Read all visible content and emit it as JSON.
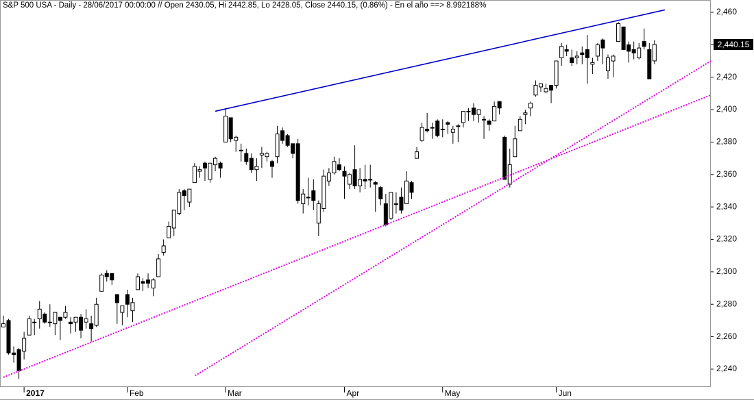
{
  "chart_data": {
    "type": "candlestick",
    "title": "S&P 500 USA - Daily - 28/06/2017 00:00:00 // Open 2430.05, Hi 2442.85, Lo 2428.05, Close 2440.15, (0.86%) - En el año ==> 8.992188%",
    "categories": [
      null,
      null,
      null,
      null,
      "2017",
      null,
      null,
      null,
      null,
      null,
      null,
      null,
      null,
      null,
      null,
      null,
      null,
      null,
      null,
      null,
      null,
      null,
      null,
      null,
      "Feb",
      null,
      null,
      null,
      null,
      null,
      null,
      null,
      null,
      null,
      null,
      null,
      null,
      null,
      null,
      null,
      null,
      null,
      null,
      "Mar",
      null,
      null,
      null,
      null,
      null,
      null,
      null,
      null,
      null,
      null,
      null,
      null,
      null,
      null,
      null,
      null,
      null,
      null,
      null,
      null,
      null,
      null,
      "Apr",
      null,
      null,
      null,
      null,
      null,
      null,
      null,
      null,
      null,
      null,
      null,
      null,
      null,
      null,
      null,
      null,
      null,
      null,
      "May",
      null,
      null,
      null,
      null,
      null,
      null,
      null,
      null,
      null,
      null,
      null,
      null,
      null,
      null,
      null,
      null,
      null,
      null,
      null,
      null,
      null,
      "Jun",
      null,
      null,
      null,
      null,
      null,
      null,
      null,
      null,
      null,
      null,
      null,
      null,
      null,
      null,
      null,
      null,
      null,
      null,
      null
    ],
    "candles": [
      {
        "open": 2266,
        "high": 2273,
        "low": 2266,
        "close": 2268
      },
      {
        "open": 2270,
        "high": 2271,
        "low": 2249,
        "close": 2250
      },
      {
        "open": 2250,
        "high": 2254,
        "low": 2244,
        "close": 2249
      },
      {
        "open": 2252,
        "high": 2253,
        "low": 2234,
        "close": 2239
      },
      {
        "open": 2251,
        "high": 2263,
        "low": 2246,
        "close": 2259
      },
      {
        "open": 2261,
        "high": 2273,
        "low": 2261,
        "close": 2271
      },
      {
        "open": 2269,
        "high": 2271,
        "low": 2261,
        "close": 2269
      },
      {
        "open": 2271,
        "high": 2282,
        "low": 2265,
        "close": 2277
      },
      {
        "open": 2274,
        "high": 2275,
        "low": 2268,
        "close": 2269
      },
      {
        "open": 2269,
        "high": 2280,
        "low": 2266,
        "close": 2269
      },
      {
        "open": 2268,
        "high": 2275,
        "low": 2261,
        "close": 2275
      },
      {
        "open": 2272,
        "high": 2272,
        "low": 2258,
        "close": 2270
      },
      {
        "open": 2272,
        "high": 2279,
        "low": 2271,
        "close": 2275
      },
      {
        "open": 2269,
        "high": 2272,
        "low": 2262,
        "close": 2268
      },
      {
        "open": 2269,
        "high": 2272,
        "low": 2263,
        "close": 2272
      },
      {
        "open": 2272,
        "high": 2274,
        "low": 2259,
        "close": 2264
      },
      {
        "open": 2269,
        "high": 2277,
        "low": 2265,
        "close": 2271
      },
      {
        "open": 2268,
        "high": 2273,
        "low": 2257,
        "close": 2265
      },
      {
        "open": 2267,
        "high": 2284,
        "low": 2266,
        "close": 2280
      },
      {
        "open": 2288,
        "high": 2299,
        "low": 2288,
        "close": 2298
      },
      {
        "open": 2299,
        "high": 2301,
        "low": 2294,
        "close": 2297
      },
      {
        "open": 2299,
        "high": 2299,
        "low": 2292,
        "close": 2295
      },
      {
        "open": 2286,
        "high": 2286,
        "low": 2268,
        "close": 2281
      },
      {
        "open": 2275,
        "high": 2279,
        "low": 2267,
        "close": 2279
      },
      {
        "open": 2286,
        "high": 2289,
        "low": 2272,
        "close": 2280
      },
      {
        "open": 2276,
        "high": 2284,
        "low": 2269,
        "close": 2281
      },
      {
        "open": 2289,
        "high": 2299,
        "low": 2289,
        "close": 2297
      },
      {
        "open": 2294,
        "high": 2296,
        "low": 2288,
        "close": 2293
      },
      {
        "open": 2295,
        "high": 2299,
        "low": 2290,
        "close": 2293
      },
      {
        "open": 2290,
        "high": 2296,
        "low": 2285,
        "close": 2295
      },
      {
        "open": 2297,
        "high": 2311,
        "low": 2297,
        "close": 2308
      },
      {
        "open": 2312,
        "high": 2320,
        "low": 2310,
        "close": 2316
      },
      {
        "open": 2321,
        "high": 2331,
        "low": 2321,
        "close": 2328
      },
      {
        "open": 2327,
        "high": 2338,
        "low": 2322,
        "close": 2338
      },
      {
        "open": 2336,
        "high": 2351,
        "low": 2335,
        "close": 2349
      },
      {
        "open": 2350,
        "high": 2351,
        "low": 2338,
        "close": 2347
      },
      {
        "open": 2343,
        "high": 2351,
        "low": 2340,
        "close": 2351
      },
      {
        "open": 2355,
        "high": 2367,
        "low": 2355,
        "close": 2365
      },
      {
        "open": 2362,
        "high": 2365,
        "low": 2358,
        "close": 2363
      },
      {
        "open": 2367,
        "high": 2368,
        "low": 2356,
        "close": 2364
      },
      {
        "open": 2357,
        "high": 2367,
        "low": 2355,
        "close": 2367
      },
      {
        "open": 2366,
        "high": 2371,
        "low": 2362,
        "close": 2370
      },
      {
        "open": 2367,
        "high": 2368,
        "low": 2358,
        "close": 2364
      },
      {
        "open": 2380,
        "high": 2401,
        "low": 2380,
        "close": 2396
      },
      {
        "open": 2395,
        "high": 2395,
        "low": 2380,
        "close": 2382
      },
      {
        "open": 2381,
        "high": 2384,
        "low": 2374,
        "close": 2383
      },
      {
        "open": 2375,
        "high": 2379,
        "low": 2368,
        "close": 2375
      },
      {
        "open": 2373,
        "high": 2376,
        "low": 2366,
        "close": 2368
      },
      {
        "open": 2370,
        "high": 2373,
        "low": 2361,
        "close": 2363
      },
      {
        "open": 2363,
        "high": 2370,
        "low": 2356,
        "close": 2365
      },
      {
        "open": 2372,
        "high": 2377,
        "low": 2364,
        "close": 2373
      },
      {
        "open": 2371,
        "high": 2374,
        "low": 2368,
        "close": 2373
      },
      {
        "open": 2368,
        "high": 2369,
        "low": 2358,
        "close": 2365
      },
      {
        "open": 2371,
        "high": 2390,
        "low": 2367,
        "close": 2385
      },
      {
        "open": 2387,
        "high": 2389,
        "low": 2379,
        "close": 2381
      },
      {
        "open": 2384,
        "high": 2385,
        "low": 2377,
        "close": 2378
      },
      {
        "open": 2379,
        "high": 2379,
        "low": 2370,
        "close": 2373
      },
      {
        "open": 2379,
        "high": 2382,
        "low": 2342,
        "close": 2344
      },
      {
        "open": 2342,
        "high": 2351,
        "low": 2336,
        "close": 2348
      },
      {
        "open": 2346,
        "high": 2358,
        "low": 2341,
        "close": 2346
      },
      {
        "open": 2350,
        "high": 2357,
        "low": 2338,
        "close": 2344
      },
      {
        "open": 2330,
        "high": 2344,
        "low": 2322,
        "close": 2342
      },
      {
        "open": 2339,
        "high": 2363,
        "low": 2337,
        "close": 2359
      },
      {
        "open": 2356,
        "high": 2364,
        "low": 2353,
        "close": 2361
      },
      {
        "open": 2361,
        "high": 2371,
        "low": 2360,
        "close": 2368
      },
      {
        "open": 2366,
        "high": 2370,
        "low": 2362,
        "close": 2363
      },
      {
        "open": 2362,
        "high": 2365,
        "low": 2345,
        "close": 2359
      },
      {
        "open": 2354,
        "high": 2361,
        "low": 2351,
        "close": 2360
      },
      {
        "open": 2363,
        "high": 2378,
        "low": 2351,
        "close": 2353
      },
      {
        "open": 2353,
        "high": 2364,
        "low": 2349,
        "close": 2357
      },
      {
        "open": 2357,
        "high": 2366,
        "low": 2351,
        "close": 2356
      },
      {
        "open": 2357,
        "high": 2366,
        "low": 2352,
        "close": 2357
      },
      {
        "open": 2355,
        "high": 2356,
        "low": 2337,
        "close": 2354
      },
      {
        "open": 2352,
        "high": 2353,
        "low": 2341,
        "close": 2345
      },
      {
        "open": 2342,
        "high": 2348,
        "low": 2328,
        "close": 2329
      },
      {
        "open": 2333,
        "high": 2349,
        "low": 2332,
        "close": 2349
      },
      {
        "open": 2342,
        "high": 2349,
        "low": 2336,
        "close": 2342
      },
      {
        "open": 2346,
        "high": 2352,
        "low": 2336,
        "close": 2338
      },
      {
        "open": 2342,
        "high": 2362,
        "low": 2342,
        "close": 2356
      },
      {
        "open": 2355,
        "high": 2356,
        "low": 2345,
        "close": 2349
      },
      {
        "open": 2370,
        "high": 2377,
        "low": 2370,
        "close": 2374
      },
      {
        "open": 2381,
        "high": 2392,
        "low": 2380,
        "close": 2389
      },
      {
        "open": 2388,
        "high": 2398,
        "low": 2386,
        "close": 2387
      },
      {
        "open": 2389,
        "high": 2392,
        "low": 2382,
        "close": 2389
      },
      {
        "open": 2393,
        "high": 2394,
        "low": 2383,
        "close": 2384
      },
      {
        "open": 2388,
        "high": 2394,
        "low": 2383,
        "close": 2388
      },
      {
        "open": 2392,
        "high": 2393,
        "low": 2385,
        "close": 2391
      },
      {
        "open": 2386,
        "high": 2390,
        "low": 2379,
        "close": 2388
      },
      {
        "open": 2390,
        "high": 2391,
        "low": 2380,
        "close": 2390
      },
      {
        "open": 2392,
        "high": 2399,
        "low": 2389,
        "close": 2399
      },
      {
        "open": 2399,
        "high": 2401,
        "low": 2393,
        "close": 2399
      },
      {
        "open": 2401,
        "high": 2404,
        "low": 2393,
        "close": 2397
      },
      {
        "open": 2397,
        "high": 2400,
        "low": 2392,
        "close": 2400
      },
      {
        "open": 2394,
        "high": 2396,
        "low": 2382,
        "close": 2394
      },
      {
        "open": 2393,
        "high": 2394,
        "low": 2387,
        "close": 2391
      },
      {
        "open": 2393,
        "high": 2405,
        "low": 2393,
        "close": 2402
      },
      {
        "open": 2405,
        "high": 2405,
        "low": 2397,
        "close": 2401
      },
      {
        "open": 2383,
        "high": 2384,
        "low": 2357,
        "close": 2357
      },
      {
        "open": 2354,
        "high": 2376,
        "low": 2352,
        "close": 2366
      },
      {
        "open": 2371,
        "high": 2390,
        "low": 2371,
        "close": 2382
      },
      {
        "open": 2387,
        "high": 2396,
        "low": 2387,
        "close": 2394
      },
      {
        "open": 2397,
        "high": 2400,
        "low": 2391,
        "close": 2398
      },
      {
        "open": 2401,
        "high": 2405,
        "low": 2396,
        "close": 2404
      },
      {
        "open": 2409,
        "high": 2418,
        "low": 2408,
        "close": 2415
      },
      {
        "open": 2414,
        "high": 2416,
        "low": 2411,
        "close": 2416
      },
      {
        "open": 2411,
        "high": 2416,
        "low": 2410,
        "close": 2413
      },
      {
        "open": 2415,
        "high": 2415,
        "low": 2404,
        "close": 2412
      },
      {
        "open": 2415,
        "high": 2430,
        "low": 2413,
        "close": 2430
      },
      {
        "open": 2432,
        "high": 2441,
        "low": 2427,
        "close": 2439
      },
      {
        "open": 2437,
        "high": 2440,
        "low": 2433,
        "close": 2436
      },
      {
        "open": 2432,
        "high": 2437,
        "low": 2427,
        "close": 2429
      },
      {
        "open": 2432,
        "high": 2436,
        "low": 2428,
        "close": 2433
      },
      {
        "open": 2435,
        "high": 2439,
        "low": 2428,
        "close": 2434
      },
      {
        "open": 2437,
        "high": 2446,
        "low": 2416,
        "close": 2432
      },
      {
        "open": 2428,
        "high": 2432,
        "low": 2422,
        "close": 2429
      },
      {
        "open": 2433,
        "high": 2441,
        "low": 2430,
        "close": 2440
      },
      {
        "open": 2443,
        "high": 2444,
        "low": 2428,
        "close": 2438
      },
      {
        "open": 2424,
        "high": 2434,
        "low": 2419,
        "close": 2432
      },
      {
        "open": 2430,
        "high": 2434,
        "low": 2420,
        "close": 2433
      },
      {
        "open": 2442,
        "high": 2454,
        "low": 2442,
        "close": 2453
      },
      {
        "open": 2451,
        "high": 2451,
        "low": 2437,
        "close": 2437
      },
      {
        "open": 2440,
        "high": 2442,
        "low": 2429,
        "close": 2436
      },
      {
        "open": 2437,
        "high": 2442,
        "low": 2431,
        "close": 2435
      },
      {
        "open": 2432,
        "high": 2441,
        "low": 2431,
        "close": 2438
      },
      {
        "open": 2442,
        "high": 2450,
        "low": 2437,
        "close": 2439
      },
      {
        "open": 2437,
        "high": 2441,
        "low": 2419,
        "close": 2419
      },
      {
        "open": 2430.05,
        "high": 2442.85,
        "low": 2428.05,
        "close": 2440.15
      }
    ],
    "up_color": "#ffffff",
    "down_color": "#000000",
    "xlim": [
      -0.66,
      136.9
    ],
    "ylim": [
      2229,
      2467.6
    ],
    "yticks": [
      {
        "value": 2240,
        "label": "2,240"
      },
      {
        "value": 2260,
        "label": "2,260"
      },
      {
        "value": 2280,
        "label": "2,280"
      },
      {
        "value": 2300,
        "label": "2,300"
      },
      {
        "value": 2320,
        "label": "2,320"
      },
      {
        "value": 2340,
        "label": "2,340"
      },
      {
        "value": 2360,
        "label": "2,360"
      },
      {
        "value": 2380,
        "label": "2,380"
      },
      {
        "value": 2400,
        "label": "2,400"
      },
      {
        "value": 2420,
        "label": "2,420"
      },
      {
        "value": 2440,
        "label": "2,440"
      },
      {
        "value": 2460,
        "label": "2,460"
      }
    ],
    "last_price": {
      "value": 2440.15,
      "label": "2,440.15"
    },
    "trendlines": [
      {
        "color": "#0000cc",
        "dashed": false,
        "x": [
          41,
          128
        ],
        "y": [
          2399,
          2461.5
        ]
      },
      {
        "color": "#e000e0",
        "dashed": true,
        "x": [
          0,
          136.9
        ],
        "y": [
          2235,
          2409
        ]
      },
      {
        "color": "#e000e0",
        "dashed": true,
        "x": [
          37.1,
          136.9
        ],
        "y": [
          2236,
          2430
        ]
      }
    ],
    "grid": false
  }
}
